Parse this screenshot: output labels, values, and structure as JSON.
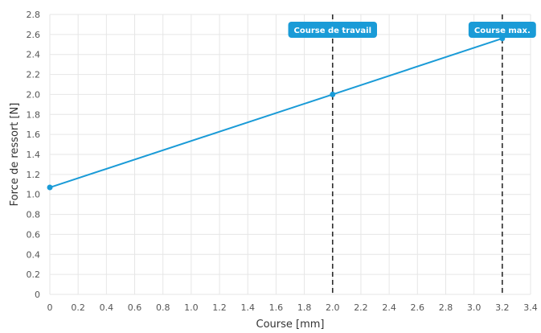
{
  "chart_data": {
    "type": "line",
    "xlabel": "Course [mm]",
    "ylabel": "Force de ressort [N]",
    "xlim": [
      0,
      3.4
    ],
    "ylim": [
      0,
      2.8
    ],
    "x_ticks": [
      "0",
      "0.2",
      "0.4",
      "0.6",
      "0.8",
      "1.0",
      "1.2",
      "1.4",
      "1.6",
      "1.8",
      "2.0",
      "2.2",
      "2.4",
      "2.6",
      "2.8",
      "3.0",
      "3.2",
      "3.4"
    ],
    "y_ticks": [
      "0",
      "0.2",
      "0.4",
      "0.6",
      "0.8",
      "1.0",
      "1.2",
      "1.4",
      "1.6",
      "1.8",
      "2.0",
      "2.2",
      "2.4",
      "2.6",
      "2.8"
    ],
    "grid": true,
    "series": [
      {
        "color": "#1a9bd7",
        "points": [
          {
            "x": 0,
            "y": 1.07
          },
          {
            "x": 2.0,
            "y": 2.0
          },
          {
            "x": 3.2,
            "y": 2.56
          }
        ]
      }
    ],
    "reference_lines": [
      {
        "x": 2.0,
        "label": "Course de travail"
      },
      {
        "x": 3.2,
        "label": "Course max."
      }
    ],
    "colors": {
      "line": "#1a9bd7",
      "label_bg": "#1a9bd7",
      "label_text": "#ffffff",
      "grid": "#e6e6e6",
      "ref_line": "#2b2b2b"
    }
  }
}
